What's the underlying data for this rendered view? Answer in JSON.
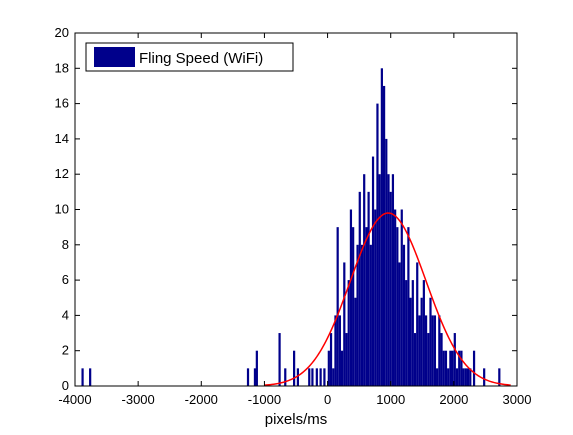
{
  "chart_data": {
    "type": "bar",
    "title": "",
    "xlabel": "pixels/ms",
    "ylabel": "",
    "xlim": [
      -4000,
      3000
    ],
    "ylim": [
      0,
      20
    ],
    "xticks": [
      -4000,
      -3000,
      -2000,
      -1000,
      0,
      1000,
      2000,
      3000
    ],
    "yticks": [
      0,
      2,
      4,
      6,
      8,
      10,
      12,
      14,
      16,
      18,
      20
    ],
    "bin_width": 35,
    "legend": {
      "position": "top-left",
      "entries": [
        "Fling Speed (WiFi)"
      ]
    },
    "colors": {
      "bars": "#00008b",
      "fit_curve": "#ff0000"
    },
    "series": [
      {
        "name": "Fling Speed (WiFi)",
        "x": [
          -3880,
          -3760,
          -1260,
          -1150,
          -1120,
          -760,
          -670,
          -530,
          -470,
          -290,
          -240,
          -170,
          -110,
          -50,
          20,
          55,
          90,
          125,
          160,
          195,
          230,
          265,
          300,
          335,
          370,
          405,
          440,
          475,
          510,
          545,
          580,
          615,
          650,
          685,
          720,
          755,
          790,
          825,
          860,
          895,
          930,
          965,
          1000,
          1035,
          1070,
          1105,
          1140,
          1175,
          1210,
          1245,
          1280,
          1315,
          1350,
          1385,
          1420,
          1455,
          1490,
          1525,
          1560,
          1595,
          1630,
          1665,
          1700,
          1735,
          1770,
          1805,
          1840,
          1875,
          1910,
          1945,
          1980,
          2015,
          2050,
          2085,
          2120,
          2155,
          2190,
          2225,
          2260,
          2320,
          2480,
          2720
        ],
        "values": [
          1,
          1,
          1,
          1,
          2,
          3,
          1,
          2,
          1,
          1,
          1,
          1,
          1,
          1,
          2,
          3,
          1,
          4,
          9,
          4,
          2,
          7,
          3,
          6,
          10,
          9,
          5,
          8,
          11,
          8,
          12,
          9,
          11,
          8,
          13,
          10,
          16,
          12,
          18,
          17,
          14,
          12,
          11,
          12,
          10,
          9,
          7,
          10,
          8,
          6,
          9,
          5,
          6,
          3,
          7,
          4,
          5,
          6,
          4,
          3,
          5,
          4,
          4,
          1,
          4,
          3,
          2,
          2,
          1,
          2,
          2,
          3,
          1,
          2,
          2,
          1,
          1,
          1,
          1,
          2,
          1,
          1
        ]
      }
    ],
    "fit_curve": {
      "type": "normal",
      "mean": 960,
      "std": 600,
      "peak": 9.8,
      "x_range": [
        -1000,
        2900
      ]
    }
  }
}
